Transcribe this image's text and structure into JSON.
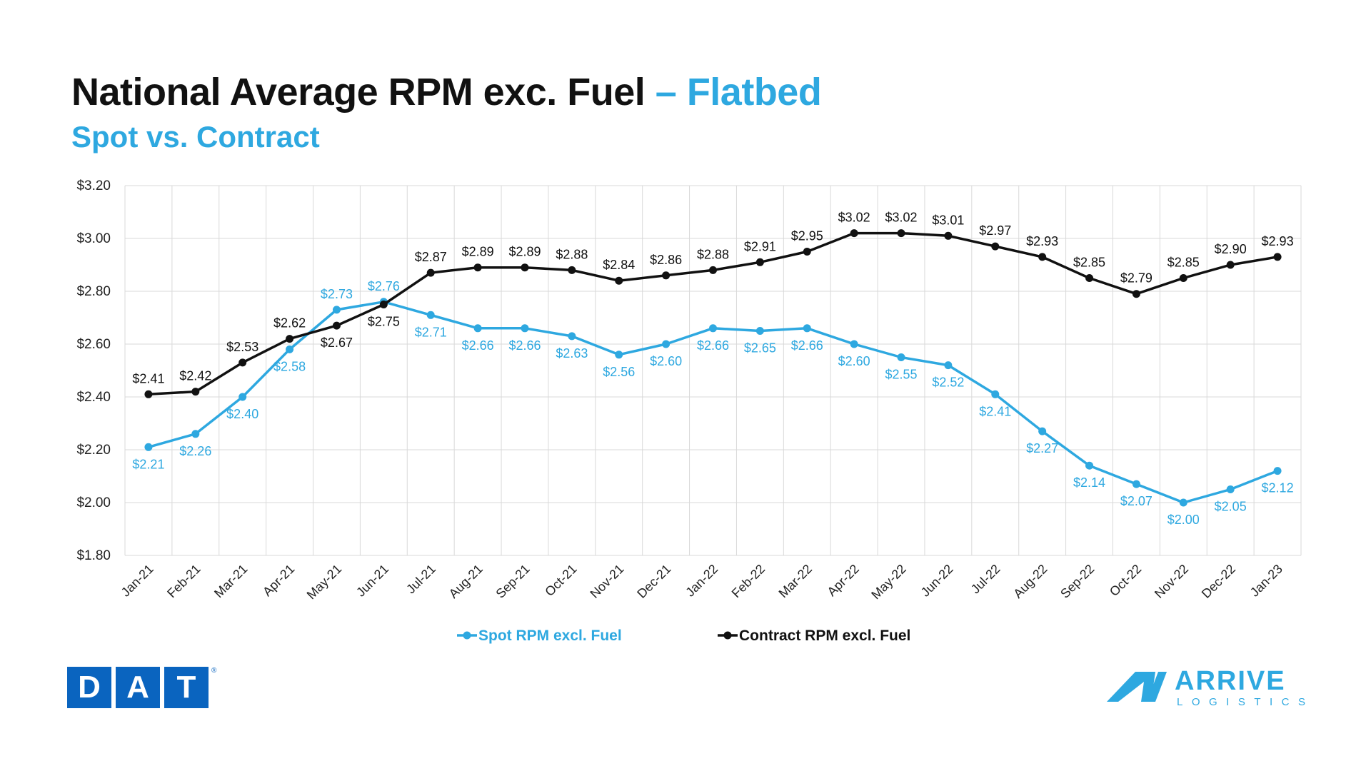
{
  "header": {
    "title_main": "National Average RPM exc. Fuel",
    "title_accent": "– Flatbed",
    "subtitle": "Spot vs. Contract"
  },
  "logos": {
    "dat_letters": [
      "D",
      "A",
      "T"
    ],
    "dat_reg": "®",
    "arrive_word": "ARRIVE",
    "arrive_sub": "LOGISTICS"
  },
  "colors": {
    "spot": "#2ea8e0",
    "contract": "#111111",
    "accent": "#2ea8e0",
    "dat_blue": "#0a64bf",
    "grid": "#d9d9d9"
  },
  "chart_data": {
    "type": "line",
    "title": "National Average RPM exc. Fuel – Flatbed",
    "subtitle": "Spot vs. Contract",
    "categories": [
      "Jan-21",
      "Feb-21",
      "Mar-21",
      "Apr-21",
      "May-21",
      "Jun-21",
      "Jul-21",
      "Aug-21",
      "Sep-21",
      "Oct-21",
      "Nov-21",
      "Dec-21",
      "Jan-22",
      "Feb-22",
      "Mar-22",
      "Apr-22",
      "May-22",
      "Jun-22",
      "Jul-22",
      "Aug-22",
      "Sep-22",
      "Oct-22",
      "Nov-22",
      "Dec-22",
      "Jan-23"
    ],
    "y_ticks": [
      "$1.80",
      "$2.00",
      "$2.20",
      "$2.40",
      "$2.60",
      "$2.80",
      "$3.00",
      "$3.20"
    ],
    "ylim": [
      1.8,
      3.2
    ],
    "grid": true,
    "legend_position": "bottom",
    "series": [
      {
        "name": "Spot RPM excl. Fuel",
        "values": [
          2.21,
          2.26,
          2.4,
          2.58,
          2.73,
          2.76,
          2.71,
          2.66,
          2.66,
          2.63,
          2.56,
          2.6,
          2.66,
          2.65,
          2.66,
          2.6,
          2.55,
          2.52,
          2.41,
          2.27,
          2.14,
          2.07,
          2.0,
          2.05,
          2.12
        ],
        "labels": [
          "$2.21",
          "$2.26",
          "$2.40",
          "$2.58",
          "$2.73",
          "$2.76",
          "$2.71",
          "$2.66",
          "$2.66",
          "$2.63",
          "$2.56",
          "$2.60",
          "$2.66",
          "$2.65",
          "$2.66",
          "$2.60",
          "$2.55",
          "$2.52",
          "$2.41",
          "$2.27",
          "$2.14",
          "$2.07",
          "$2.00",
          "$2.05",
          "$2.12"
        ]
      },
      {
        "name": "Contract RPM excl. Fuel",
        "values": [
          2.41,
          2.42,
          2.53,
          2.62,
          2.67,
          2.75,
          2.87,
          2.89,
          2.89,
          2.88,
          2.84,
          2.86,
          2.88,
          2.91,
          2.95,
          3.02,
          3.02,
          3.01,
          2.97,
          2.93,
          2.85,
          2.79,
          2.85,
          2.9,
          2.93
        ],
        "labels": [
          "$2.41",
          "$2.42",
          "$2.53",
          "$2.62",
          "$2.67",
          "$2.75",
          "$2.87",
          "$2.89",
          "$2.89",
          "$2.88",
          "$2.84",
          "$2.86",
          "$2.88",
          "$2.91",
          "$2.95",
          "$3.02",
          "$3.02",
          "$3.01",
          "$2.97",
          "$2.93",
          "$2.85",
          "$2.79",
          "$2.85",
          "$2.90",
          "$2.93"
        ]
      }
    ]
  }
}
